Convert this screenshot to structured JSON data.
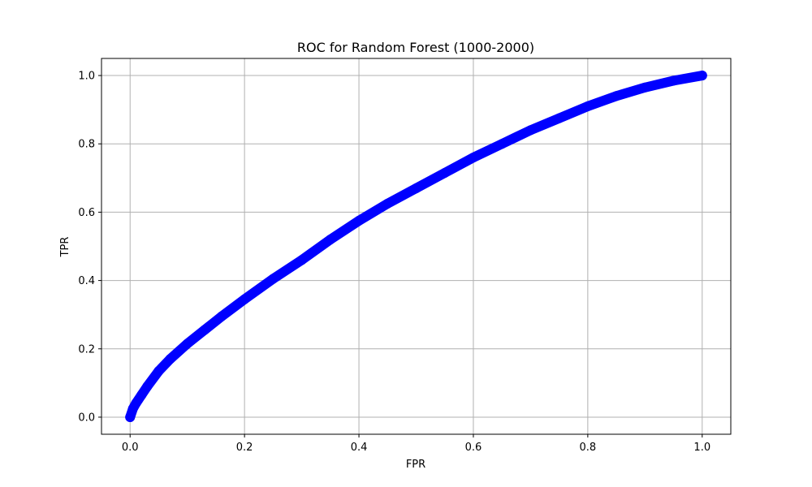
{
  "chart_data": {
    "type": "scatter",
    "title": "ROC for Random Forest (1000-2000)",
    "xlabel": "FPR",
    "ylabel": "TPR",
    "xlim": [
      -0.05,
      1.05
    ],
    "ylim": [
      -0.05,
      1.05
    ],
    "xticks": [
      0.0,
      0.2,
      0.4,
      0.6,
      0.8,
      1.0
    ],
    "yticks": [
      0.0,
      0.2,
      0.4,
      0.6,
      0.8,
      1.0
    ],
    "xtick_labels": [
      "0.0",
      "0.2",
      "0.4",
      "0.6",
      "0.8",
      "1.0"
    ],
    "ytick_labels": [
      "0.0",
      "0.2",
      "0.4",
      "0.6",
      "0.8",
      "1.0"
    ],
    "grid": true,
    "series": [
      {
        "color": "#0000ff",
        "x": [
          0.0,
          0.005,
          0.01,
          0.02,
          0.03,
          0.05,
          0.07,
          0.1,
          0.13,
          0.16,
          0.2,
          0.25,
          0.3,
          0.35,
          0.4,
          0.45,
          0.5,
          0.55,
          0.6,
          0.65,
          0.7,
          0.75,
          0.8,
          0.85,
          0.9,
          0.95,
          1.0
        ],
        "y": [
          0.0,
          0.025,
          0.04,
          0.065,
          0.09,
          0.135,
          0.17,
          0.215,
          0.255,
          0.295,
          0.345,
          0.405,
          0.46,
          0.52,
          0.575,
          0.625,
          0.67,
          0.715,
          0.76,
          0.8,
          0.84,
          0.875,
          0.91,
          0.94,
          0.965,
          0.985,
          1.0
        ]
      }
    ]
  }
}
